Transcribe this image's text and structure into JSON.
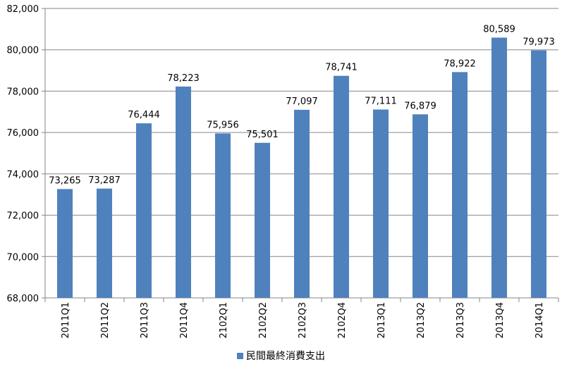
{
  "chart_data": {
    "type": "bar",
    "categories": [
      "2011Q1",
      "2011Q2",
      "2011Q3",
      "2011Q4",
      "2102Q1",
      "2102Q2",
      "2102Q3",
      "2102Q4",
      "2013Q1",
      "2013Q2",
      "2013Q3",
      "2013Q4",
      "2014Q1"
    ],
    "series": [
      {
        "name": "民間最終消費支出",
        "values": [
          73265,
          73287,
          76444,
          78223,
          75956,
          75501,
          77097,
          78741,
          77111,
          76879,
          78922,
          80589,
          79973
        ],
        "data_labels": [
          "73,265",
          "73,287",
          "76,444",
          "78,223",
          "75,956",
          "75,501",
          "77,097",
          "78,741",
          "77,111",
          "76,879",
          "78,922",
          "80,589",
          "79,973"
        ],
        "color": "#4f81bd"
      }
    ],
    "ylim": [
      68000,
      82000
    ],
    "yticks": [
      68000,
      70000,
      72000,
      74000,
      76000,
      78000,
      80000,
      82000
    ],
    "ytick_labels": [
      "68,000",
      "70,000",
      "72,000",
      "74,000",
      "76,000",
      "78,000",
      "80,000",
      "82,000"
    ],
    "grid": true,
    "legend_position": "bottom",
    "title": "",
    "xlabel": "",
    "ylabel": ""
  }
}
